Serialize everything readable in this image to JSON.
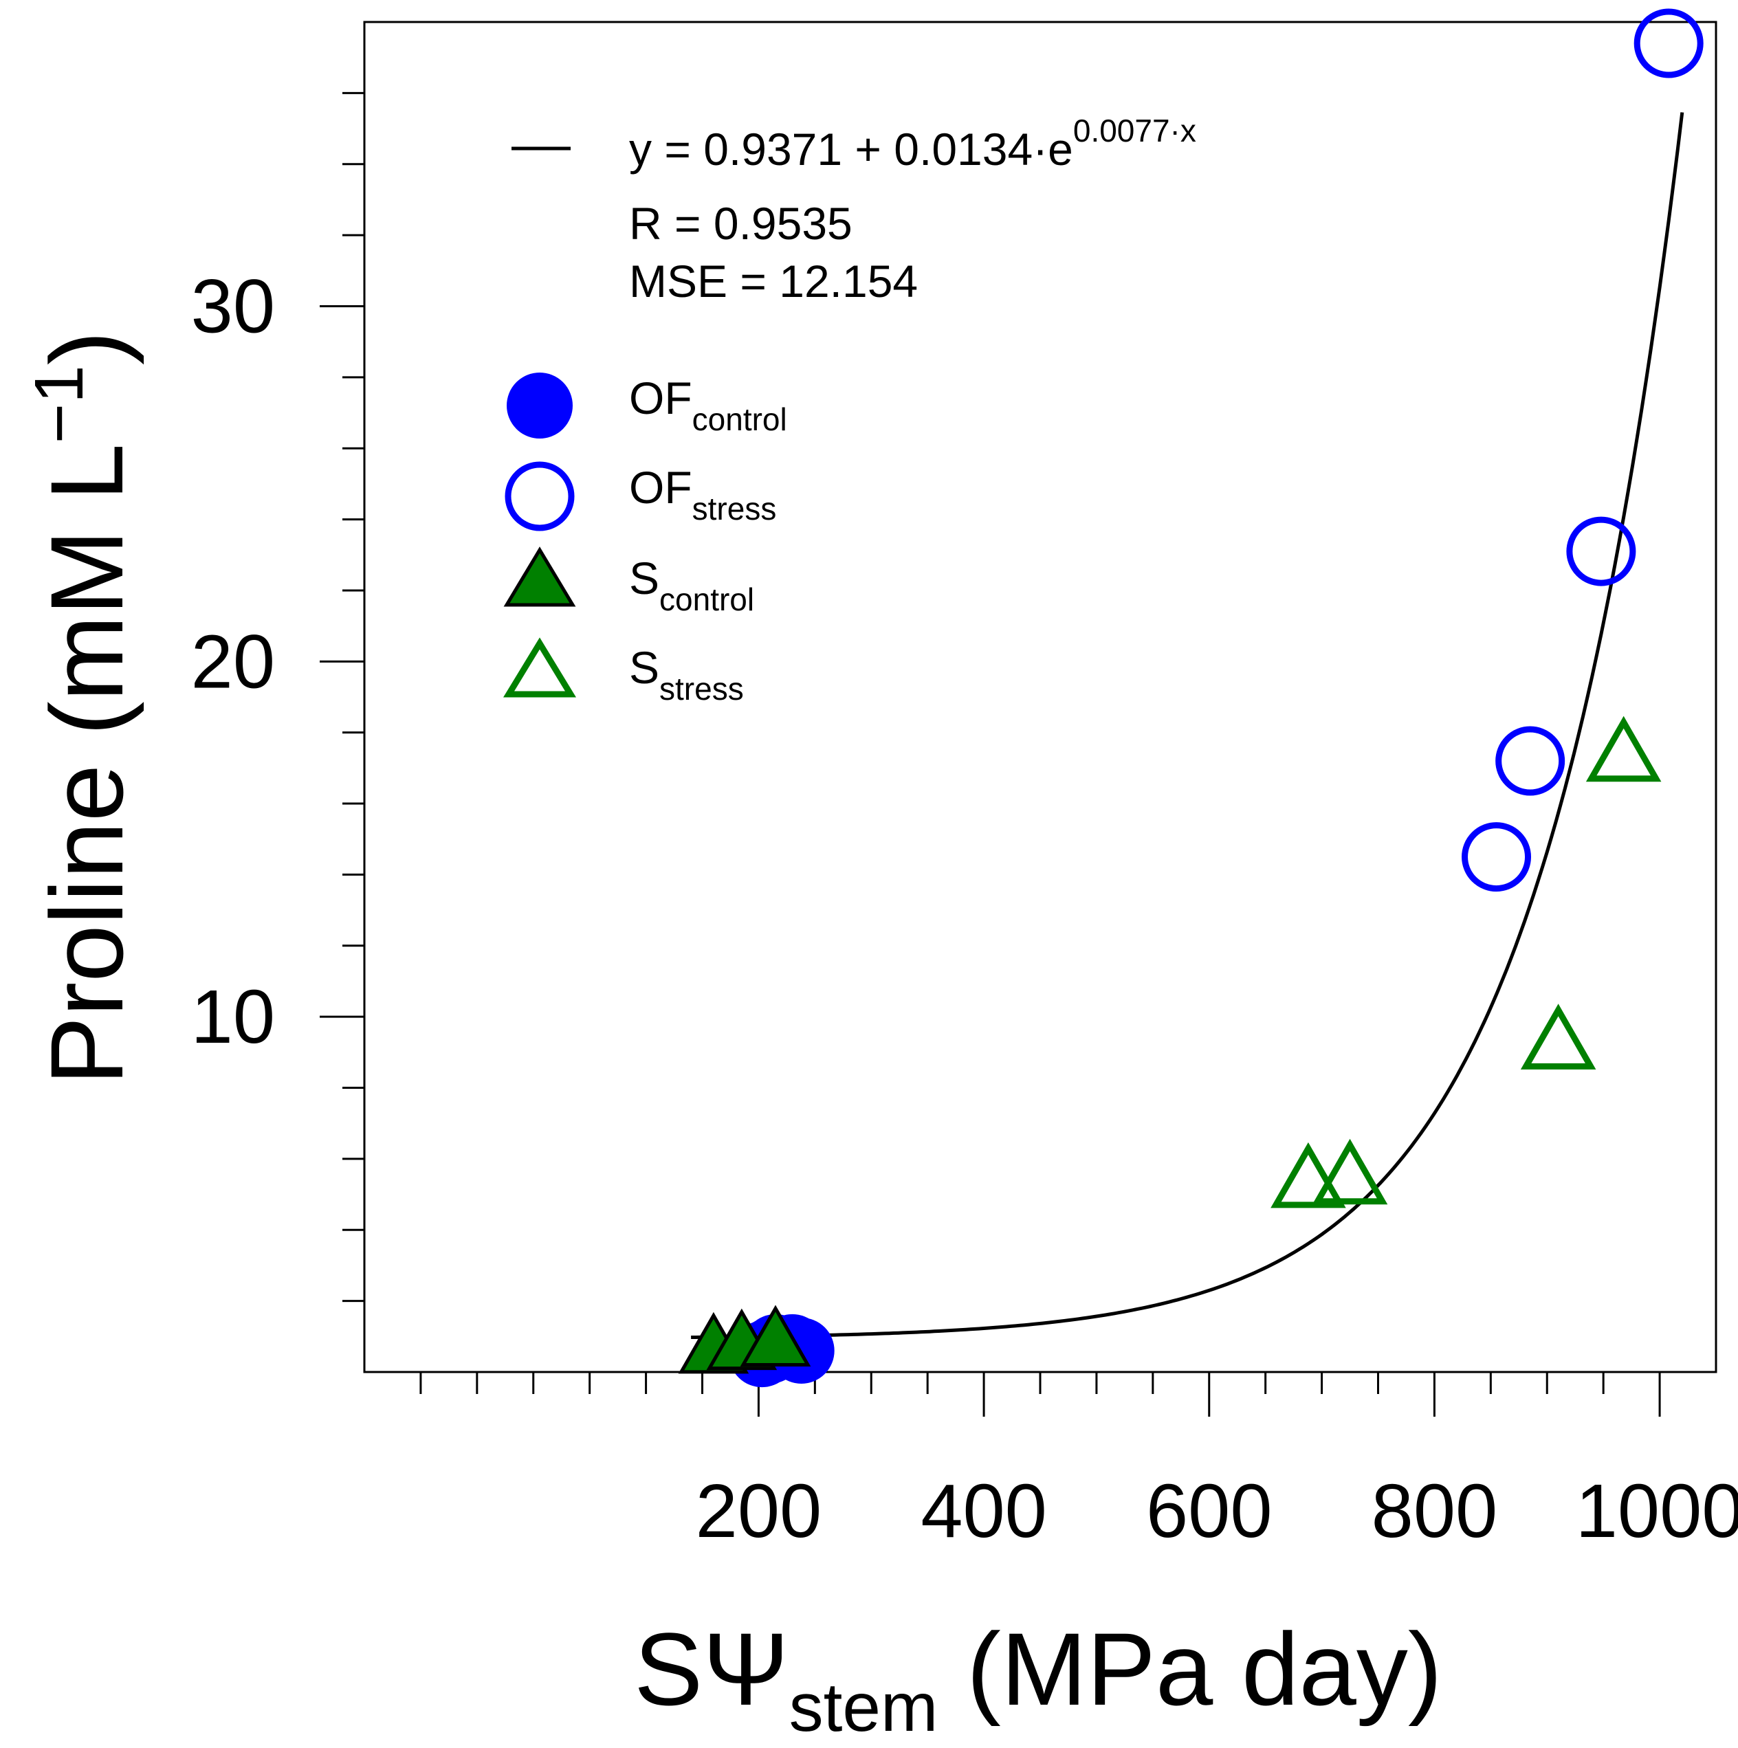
{
  "chart_data": {
    "type": "scatter",
    "xlabel": {
      "main": "SΨ",
      "sub": "stem",
      "rest": " (MPa day)"
    },
    "ylabel": {
      "main": "Proline (mM L",
      "sup": "−1",
      "rest": ")"
    },
    "xlim": [
      -150,
      1050
    ],
    "ylim": [
      0,
      38
    ],
    "x_ticks": [
      200,
      400,
      600,
      800,
      1000
    ],
    "y_ticks": [
      10,
      20,
      30
    ],
    "x_minor_step": 50,
    "y_minor_step": 2,
    "fit": {
      "label_main": "y = 0.9371 + 0.0134·e",
      "label_sup": "0.0077·x",
      "r": "R = 0.9535",
      "mse": "MSE = 12.154",
      "a": 0.9371,
      "b": 0.0134,
      "c": 0.0077,
      "x_range": [
        140,
        1020
      ],
      "color": "#000000"
    },
    "series": [
      {
        "name": "OF",
        "sub": "control",
        "marker": "circle",
        "filled": true,
        "color": "#0000ff",
        "points": [
          [
            215,
            0.7
          ],
          [
            210,
            0.6
          ],
          [
            230,
            0.7
          ],
          [
            203,
            0.5
          ],
          [
            238,
            0.6
          ]
        ]
      },
      {
        "name": "OF",
        "sub": "stress",
        "marker": "circle",
        "filled": false,
        "color": "#0000ff",
        "points": [
          [
            855,
            14.5
          ],
          [
            885,
            17.2
          ],
          [
            948,
            23.1
          ],
          [
            1008,
            37.4
          ]
        ]
      },
      {
        "name": "S",
        "sub": "control",
        "marker": "triangle",
        "filled": true,
        "color": "#008000",
        "points": [
          [
            160,
            0.7
          ],
          [
            185,
            0.8
          ],
          [
            215,
            0.9
          ]
        ]
      },
      {
        "name": "S",
        "sub": "stress",
        "marker": "triangle",
        "filled": false,
        "color": "#008000",
        "points": [
          [
            688,
            5.4
          ],
          [
            725,
            5.5
          ],
          [
            910,
            9.3
          ],
          [
            968,
            17.4
          ]
        ]
      }
    ]
  }
}
